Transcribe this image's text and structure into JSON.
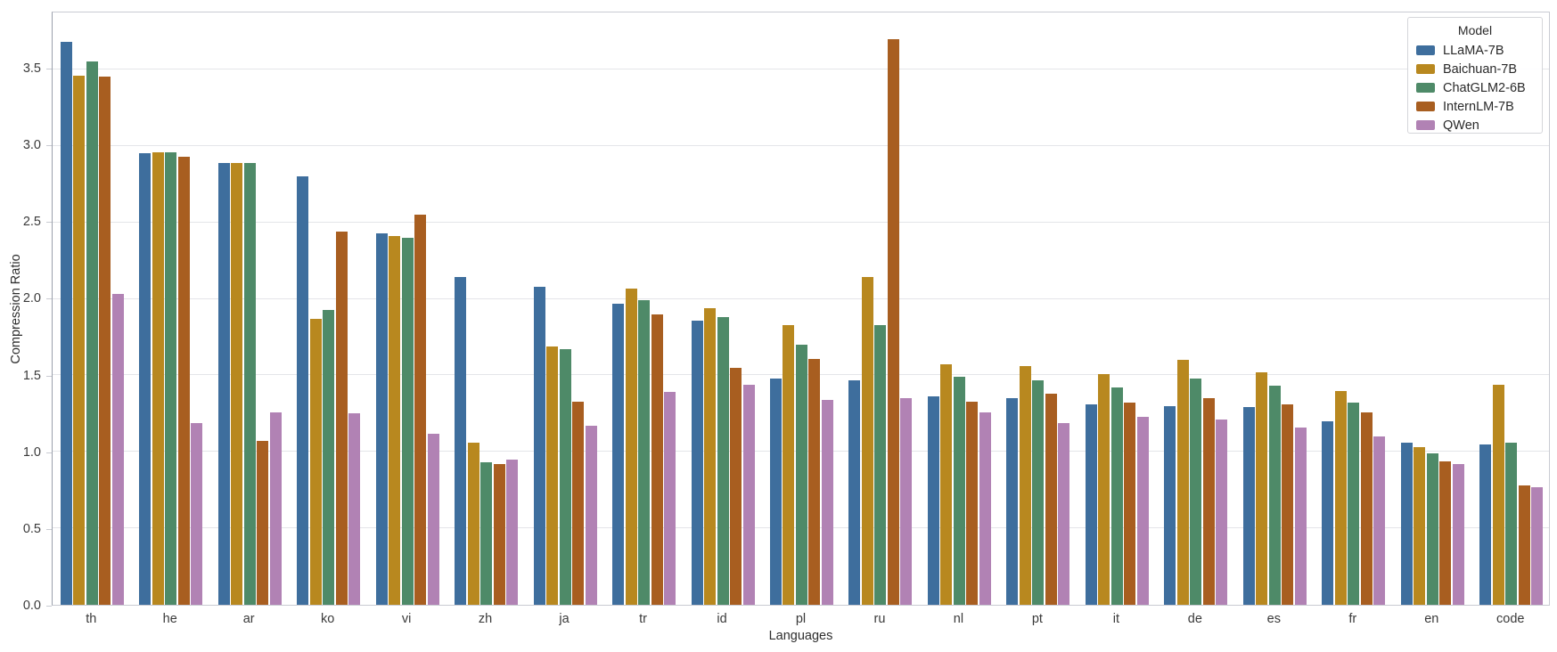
{
  "chart_data": {
    "type": "bar",
    "title": "",
    "xlabel": "Languages",
    "ylabel": "Compression Ratio",
    "ylim": [
      0,
      3.872
    ],
    "yticks": [
      0.0,
      0.5,
      1.0,
      1.5,
      2.0,
      2.5,
      3.0,
      3.5
    ],
    "grid": true,
    "legend": {
      "title": "Model",
      "position": "top-right"
    },
    "categories": [
      "th",
      "he",
      "ar",
      "ko",
      "vi",
      "zh",
      "ja",
      "tr",
      "id",
      "pl",
      "ru",
      "nl",
      "pt",
      "it",
      "de",
      "es",
      "fr",
      "en",
      "code"
    ],
    "series": [
      {
        "name": "LLaMA-7B",
        "color": "#3E6E9D",
        "values": [
          3.68,
          2.95,
          2.89,
          2.8,
          2.43,
          2.14,
          2.08,
          1.97,
          1.86,
          1.48,
          1.47,
          1.36,
          1.35,
          1.31,
          1.3,
          1.29,
          1.2,
          1.06,
          1.05
        ]
      },
      {
        "name": "Baichuan-7B",
        "color": "#B8881F",
        "values": [
          3.46,
          2.96,
          2.89,
          1.87,
          2.41,
          1.06,
          1.69,
          2.07,
          1.94,
          1.83,
          2.14,
          1.57,
          1.56,
          1.51,
          1.6,
          1.52,
          1.4,
          1.03,
          1.44
        ]
      },
      {
        "name": "ChatGLM2-6B",
        "color": "#4E8A68",
        "values": [
          3.55,
          2.96,
          2.89,
          1.93,
          2.4,
          0.93,
          1.67,
          1.99,
          1.88,
          1.7,
          1.83,
          1.49,
          1.47,
          1.42,
          1.48,
          1.43,
          1.32,
          0.99,
          1.06
        ]
      },
      {
        "name": "InternLM-7B",
        "color": "#A85E20",
        "values": [
          3.45,
          2.93,
          1.07,
          2.44,
          2.55,
          0.92,
          1.33,
          1.9,
          1.55,
          1.61,
          3.7,
          1.33,
          1.38,
          1.32,
          1.35,
          1.31,
          1.26,
          0.94,
          0.78
        ]
      },
      {
        "name": "QWen",
        "color": "#B182B4",
        "values": [
          2.03,
          1.19,
          1.26,
          1.25,
          1.12,
          0.95,
          1.17,
          1.39,
          1.44,
          1.34,
          1.35,
          1.26,
          1.19,
          1.23,
          1.21,
          1.16,
          1.1,
          0.92,
          0.77
        ]
      }
    ]
  }
}
